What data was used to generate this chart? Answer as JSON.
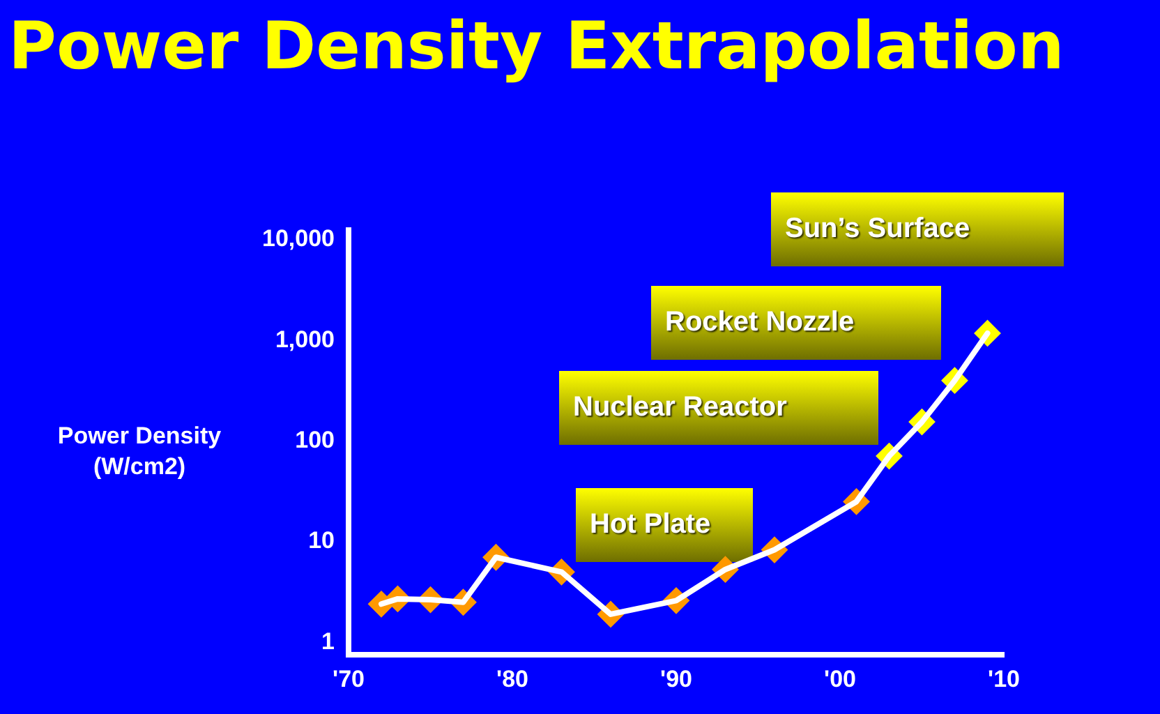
{
  "chart_data": {
    "type": "line",
    "title": "Power Density Extrapolation",
    "ylabel": "Power Density\n(W/cm2)",
    "xlim": [
      1970,
      2010
    ],
    "xticks": [
      {
        "value": 1970,
        "label": "'70"
      },
      {
        "value": 1980,
        "label": "'80"
      },
      {
        "value": 1990,
        "label": "'90"
      },
      {
        "value": 2000,
        "label": "'00"
      },
      {
        "value": 2010,
        "label": "'10"
      }
    ],
    "ylim": [
      0.75,
      12500
    ],
    "yticks": [
      {
        "value": 1,
        "label": "1"
      },
      {
        "value": 10,
        "label": "10"
      },
      {
        "value": 100,
        "label": "100"
      },
      {
        "value": 1000,
        "label": "1,000"
      },
      {
        "value": 10000,
        "label": "10,000"
      }
    ],
    "log": "y",
    "grid": false,
    "legend": false,
    "series": [
      {
        "color": "#ffffff",
        "marker": "none",
        "line_style": "solid",
        "x": [
          1972,
          1973,
          1975,
          1977,
          1979,
          1983,
          1986,
          1990,
          1993,
          1996,
          2001,
          2003,
          2005,
          2007,
          2009
        ],
        "values": [
          2.4,
          2.7,
          2.65,
          2.5,
          7,
          5,
          1.9,
          2.6,
          5.3,
          8.3,
          25,
          71,
          155,
          400,
          1180
        ]
      },
      {
        "type": "scatter",
        "marker": "diamond",
        "colors": [
          "#ff9900",
          "#ff9900",
          "#ff9900",
          "#ff9900",
          "#ff9900",
          "#ff9900",
          "#ff9900",
          "#ff9900",
          "#ff9900",
          "#ff9900",
          "#ff9900",
          "#ffff00",
          "#ffff00",
          "#ffff00",
          "#ffff00"
        ],
        "x": [
          1972,
          1973,
          1975,
          1977,
          1979,
          1983,
          1986,
          1990,
          1993,
          1996,
          2001,
          2003,
          2005,
          2007,
          2009
        ],
        "values": [
          2.4,
          2.7,
          2.65,
          2.5,
          7,
          5,
          1.9,
          2.6,
          5.3,
          8.3,
          25,
          71,
          155,
          400,
          1180
        ]
      }
    ],
    "annotations": [
      "Hot Plate",
      "Nuclear Reactor",
      "Rocket Nozzle",
      "Sun’s Surface"
    ]
  }
}
